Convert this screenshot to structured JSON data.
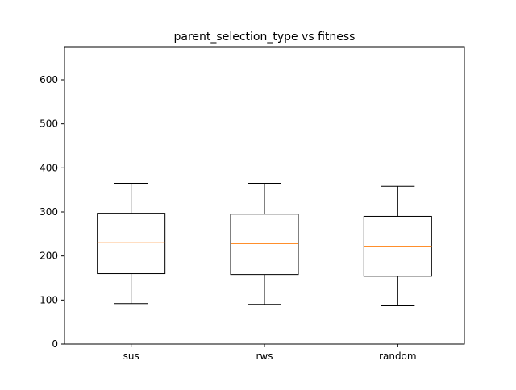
{
  "chart_data": {
    "type": "boxplot",
    "title": "parent_selection_type vs fitness",
    "xlabel": "",
    "ylabel": "",
    "categories": [
      "sus",
      "rws",
      "random"
    ],
    "boxes": [
      {
        "category": "sus",
        "whisker_low": 92,
        "q1": 160,
        "median": 230,
        "q3": 297,
        "whisker_high": 365
      },
      {
        "category": "rws",
        "whisker_low": 90,
        "q1": 158,
        "median": 228,
        "q3": 295,
        "whisker_high": 365
      },
      {
        "category": "random",
        "whisker_low": 87,
        "q1": 154,
        "median": 222,
        "q3": 290,
        "whisker_high": 358
      }
    ],
    "ylim": [
      0,
      675
    ],
    "yticks": [
      0,
      100,
      200,
      300,
      400,
      500,
      600
    ],
    "grid": false,
    "legend": "none",
    "colors": {
      "box": "#000000",
      "median": "#ff7f0e",
      "axes": "#000000",
      "background": "#ffffff"
    }
  }
}
